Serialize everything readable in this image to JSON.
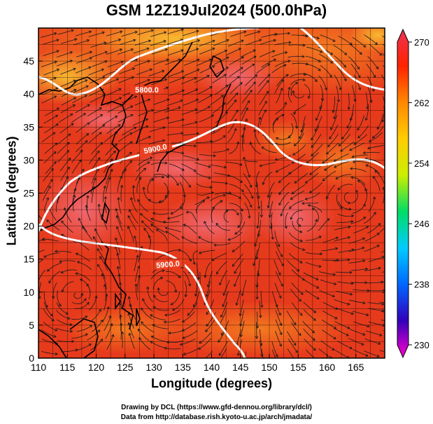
{
  "title": "GSM 12Z19Jul2024 (500.0hPa)",
  "xlabel": "Longitude (degrees)",
  "ylabel": "Latitude  (degrees)",
  "credits": [
    "Drawing by DCL (https://www.gfd-dennou.org/library/dcl/)",
    "Data from http://database.rish.kyoto-u.ac.jp/arch/jmadata/"
  ],
  "map": {
    "lon_range": [
      110,
      170
    ],
    "lat_range": [
      0,
      50
    ],
    "x_ticks": [
      110,
      115,
      120,
      125,
      130,
      135,
      140,
      145,
      150,
      155,
      160,
      165
    ],
    "y_ticks": [
      0,
      5,
      10,
      15,
      20,
      25,
      30,
      35,
      40,
      45
    ],
    "contour_labels": [
      "5800.0",
      "5900.0",
      "5900.0"
    ],
    "colorbar": {
      "ticks": [
        230,
        238,
        246,
        254,
        262,
        270
      ],
      "colors": [
        "#ff00cc",
        "#3300bb",
        "#0066ff",
        "#00ccff",
        "#00dd66",
        "#ccee00",
        "#ffcc00",
        "#ff8800",
        "#ff2200",
        "#ee3355"
      ]
    },
    "colors": {
      "field_main": "#e63a1c",
      "field_warm": "#f26a1a",
      "field_orange": "#f6a12a",
      "field_pink": "#ef5a63",
      "contour": "#ffffff",
      "streamline": "#1a1a1a",
      "coast": "#000000"
    }
  }
}
